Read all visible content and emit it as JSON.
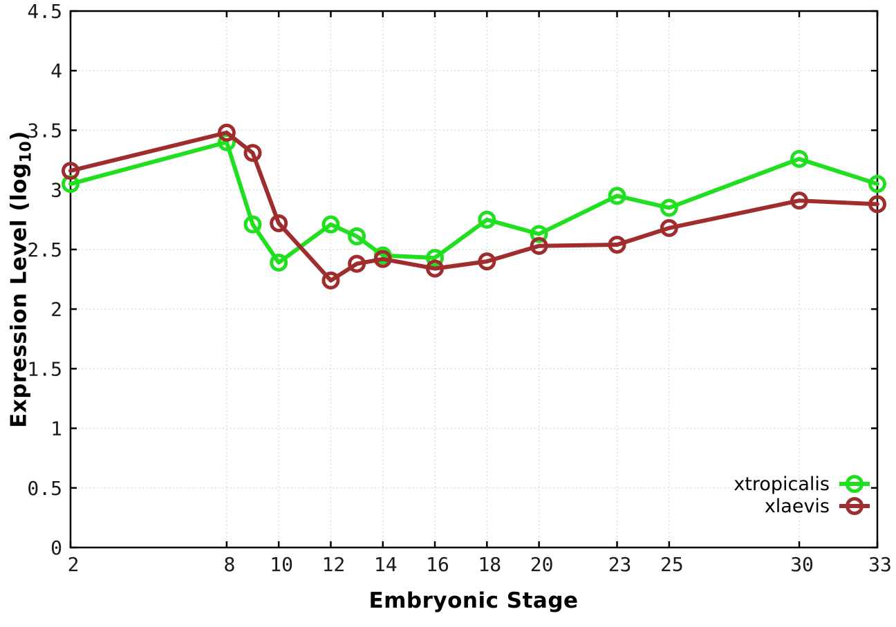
{
  "chart_data": {
    "type": "line",
    "x": [
      2,
      8,
      9,
      10,
      12,
      13,
      14,
      16,
      18,
      20,
      23,
      25,
      30,
      33
    ],
    "series": [
      {
        "name": "xtropicalis",
        "color": "#1fdf1f",
        "values": [
          3.05,
          3.4,
          2.71,
          2.39,
          2.71,
          2.61,
          2.45,
          2.43,
          2.75,
          2.63,
          2.95,
          2.85,
          3.26,
          3.05
        ]
      },
      {
        "name": "xlaevis",
        "color": "#a02d2d",
        "values": [
          3.16,
          3.48,
          3.31,
          2.72,
          2.24,
          2.38,
          2.42,
          2.34,
          2.4,
          2.53,
          2.54,
          2.68,
          2.91,
          2.88
        ]
      }
    ],
    "title": "",
    "xlabel": "Embryonic Stage",
    "ylabel": {
      "prefix": "Expression Level (log",
      "subscript": "10",
      "suffix": ")"
    },
    "xlim": [
      2,
      33
    ],
    "ylim": [
      0,
      4.5
    ],
    "xticks": [
      2,
      8,
      10,
      12,
      14,
      16,
      18,
      20,
      23,
      25,
      30,
      33
    ],
    "xtick_labels": [
      "2",
      "8",
      "10",
      "12",
      "14",
      "16",
      "18",
      "20",
      "23",
      "25",
      "30",
      "33"
    ],
    "yticks": [
      0,
      0.5,
      1,
      1.5,
      2,
      2.5,
      3,
      3.5,
      4,
      4.5
    ],
    "ytick_labels": [
      "0",
      "0.5",
      "1",
      "1.5",
      "2",
      "2.5",
      "3",
      "3.5",
      "4",
      "4.5"
    ],
    "grid": true,
    "legend_position": "bottom-right",
    "colors": {
      "background": "#ffffff",
      "grid": "#c9c9c9",
      "border": "#000000",
      "tick_text": "#1a1a1a"
    },
    "marker": "open-circle"
  }
}
